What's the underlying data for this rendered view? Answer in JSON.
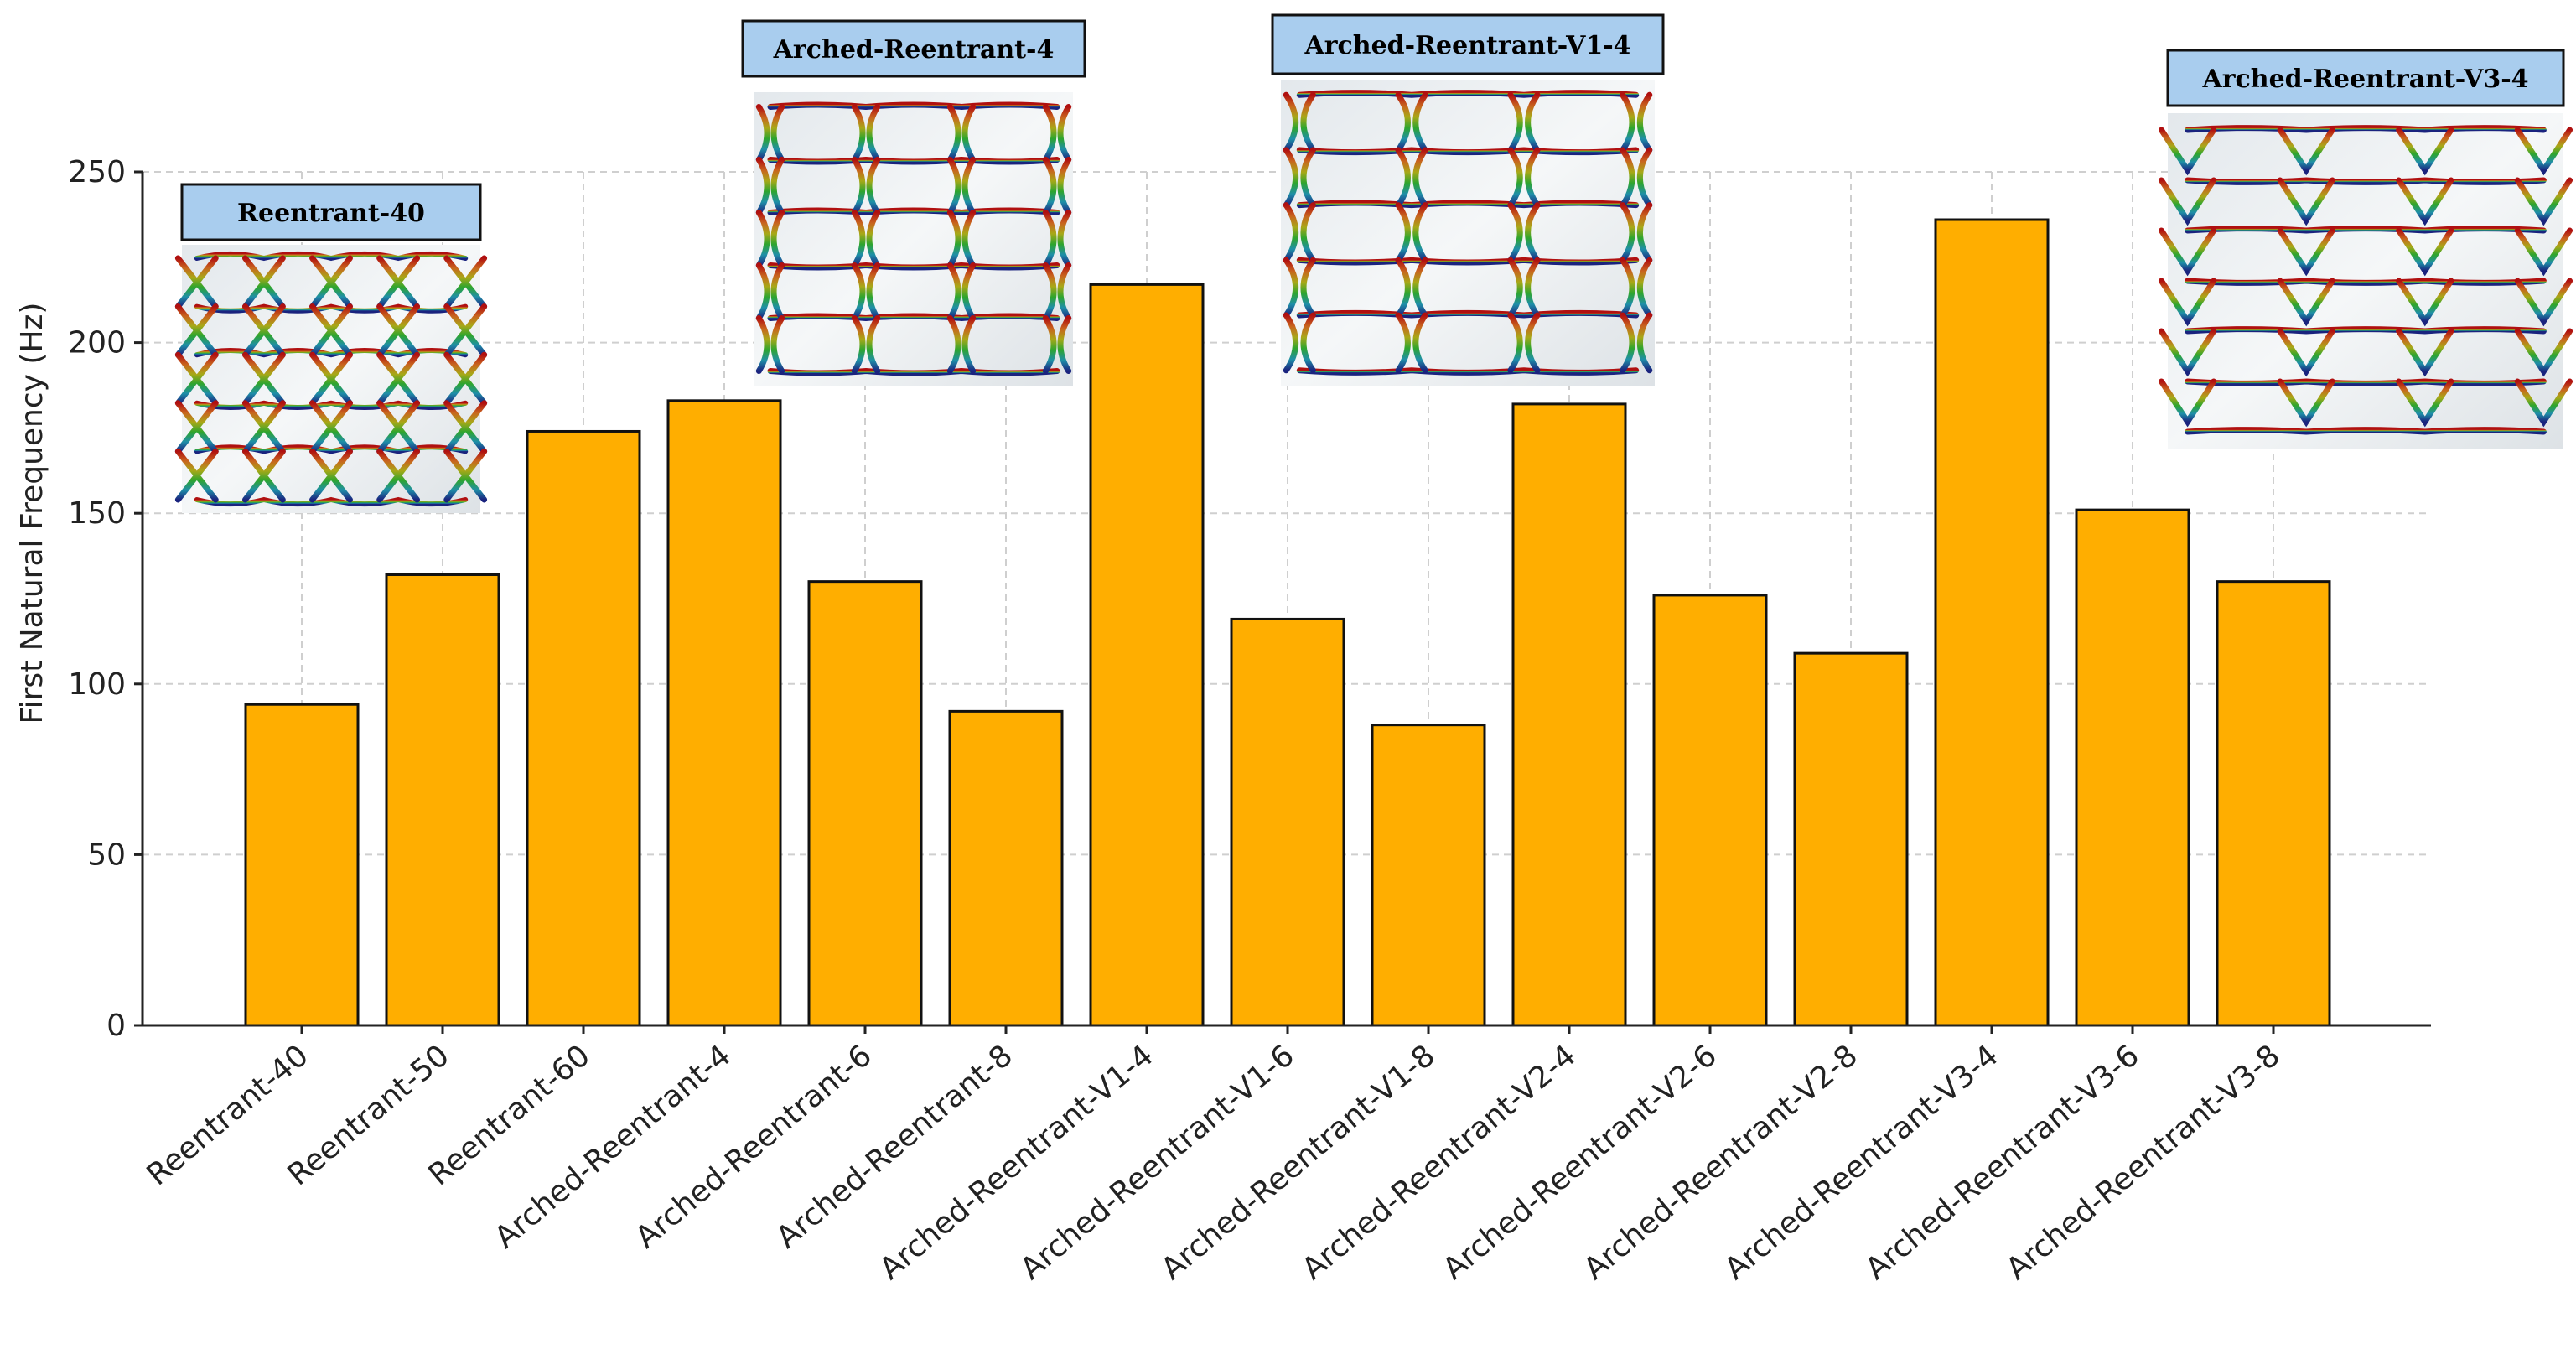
{
  "chart_data": {
    "type": "bar",
    "title": "",
    "xlabel": "",
    "ylabel": "First Natural Frequency (Hz)",
    "ylim": [
      0,
      250
    ],
    "yticks": [
      0,
      50,
      100,
      150,
      200,
      250
    ],
    "grid": true,
    "categories": [
      "Reentrant-40",
      "Reentrant-50",
      "Reentrant-60",
      "Arched-Reentrant-4",
      "Arched-Reentrant-6",
      "Arched-Reentrant-8",
      "Arched-Reentrant-V1-4",
      "Arched-Reentrant-V1-6",
      "Arched-Reentrant-V1-8",
      "Arched-Reentrant-V2-4",
      "Arched-Reentrant-V2-6",
      "Arched-Reentrant-V2-8",
      "Arched-Reentrant-V3-4",
      "Arched-Reentrant-V3-6",
      "Arched-Reentrant-V3-8"
    ],
    "values": [
      94,
      132,
      174,
      183,
      130,
      92,
      217,
      119,
      88,
      182,
      126,
      109,
      236,
      151,
      130
    ],
    "bar_color": "#FFAE00",
    "annotations": [
      {
        "label": "Reentrant-40"
      },
      {
        "label": "Arched-Reentrant-4"
      },
      {
        "label": "Arched-Reentrant-V1-4"
      },
      {
        "label": "Arched-Reentrant-V3-4"
      }
    ]
  }
}
